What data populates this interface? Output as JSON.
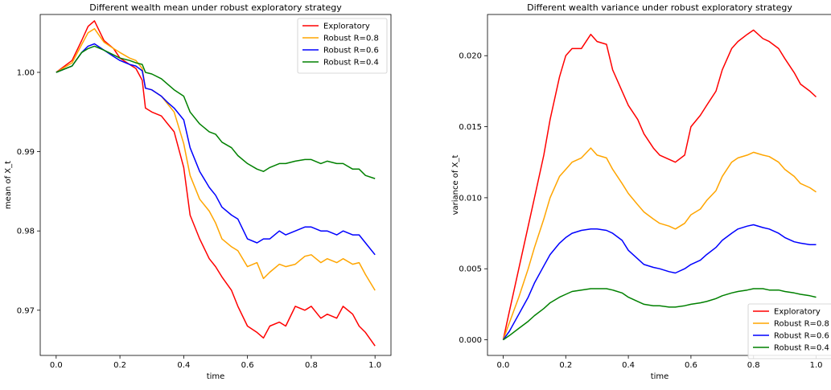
{
  "chart_data": [
    {
      "type": "line",
      "title": "Different wealth mean under robust exploratory strategy",
      "xlabel": "time",
      "ylabel": "mean of X_t",
      "xlim": [
        -0.05,
        1.05
      ],
      "ylim": [
        0.9643,
        1.0073
      ],
      "x_ticks": [
        0.0,
        0.2,
        0.4,
        0.6,
        0.8,
        1.0
      ],
      "y_ticks": [
        0.97,
        0.98,
        0.99,
        1.0
      ],
      "x_tick_labels": [
        "0.0",
        "0.2",
        "0.4",
        "0.6",
        "0.8",
        "1.0"
      ],
      "y_tick_labels": [
        "0.97",
        "0.98",
        "0.99",
        "1.00"
      ],
      "legend": "upper right",
      "grid": false,
      "series": [
        {
          "name": "Exploratory",
          "color": "#ff0000",
          "x": [
            0,
            0.05,
            0.08,
            0.1,
            0.12,
            0.15,
            0.18,
            0.2,
            0.23,
            0.25,
            0.27,
            0.28,
            0.3,
            0.33,
            0.35,
            0.37,
            0.4,
            0.42,
            0.45,
            0.48,
            0.5,
            0.52,
            0.55,
            0.57,
            0.6,
            0.63,
            0.65,
            0.67,
            0.7,
            0.72,
            0.75,
            0.78,
            0.8,
            0.83,
            0.85,
            0.88,
            0.9,
            0.93,
            0.95,
            0.97,
            1.0
          ],
          "y": [
            1.0,
            1.0015,
            1.004,
            1.0058,
            1.0065,
            1.004,
            1.003,
            1.0018,
            1.001,
            1.0005,
            0.999,
            0.9955,
            0.995,
            0.9945,
            0.9935,
            0.9925,
            0.988,
            0.982,
            0.979,
            0.9765,
            0.9755,
            0.9742,
            0.9725,
            0.9705,
            0.968,
            0.9672,
            0.9665,
            0.968,
            0.9685,
            0.968,
            0.9705,
            0.97,
            0.9705,
            0.969,
            0.9695,
            0.969,
            0.9705,
            0.9695,
            0.968,
            0.9672,
            0.9655
          ]
        },
        {
          "name": "Robust R=0.8",
          "color": "#ffa500",
          "x": [
            0,
            0.05,
            0.08,
            0.1,
            0.12,
            0.15,
            0.18,
            0.2,
            0.23,
            0.25,
            0.27,
            0.28,
            0.3,
            0.33,
            0.35,
            0.37,
            0.4,
            0.42,
            0.45,
            0.48,
            0.5,
            0.52,
            0.55,
            0.57,
            0.6,
            0.63,
            0.65,
            0.67,
            0.7,
            0.72,
            0.75,
            0.78,
            0.8,
            0.83,
            0.85,
            0.88,
            0.9,
            0.93,
            0.95,
            0.97,
            1.0
          ],
          "y": [
            1.0,
            1.0012,
            1.0035,
            1.005,
            1.0055,
            1.0038,
            1.003,
            1.0025,
            1.0018,
            1.0015,
            1.0005,
            0.998,
            0.9978,
            0.997,
            0.996,
            0.995,
            0.991,
            0.987,
            0.984,
            0.9825,
            0.981,
            0.979,
            0.978,
            0.9775,
            0.9755,
            0.976,
            0.974,
            0.9748,
            0.9758,
            0.9755,
            0.9758,
            0.9768,
            0.977,
            0.976,
            0.9765,
            0.976,
            0.9765,
            0.9758,
            0.976,
            0.9745,
            0.9725
          ]
        },
        {
          "name": "Robust R=0.6",
          "color": "#0000ff",
          "x": [
            0,
            0.05,
            0.08,
            0.1,
            0.12,
            0.15,
            0.18,
            0.2,
            0.23,
            0.25,
            0.27,
            0.28,
            0.3,
            0.33,
            0.35,
            0.37,
            0.4,
            0.42,
            0.45,
            0.48,
            0.5,
            0.52,
            0.55,
            0.57,
            0.6,
            0.63,
            0.65,
            0.67,
            0.7,
            0.72,
            0.75,
            0.78,
            0.8,
            0.83,
            0.85,
            0.88,
            0.9,
            0.93,
            0.95,
            0.97,
            1.0
          ],
          "y": [
            1.0,
            1.0008,
            1.0025,
            1.0033,
            1.0036,
            1.0028,
            1.002,
            1.0015,
            1.001,
            1.0008,
            1.0002,
            0.998,
            0.9978,
            0.997,
            0.9962,
            0.9955,
            0.994,
            0.9905,
            0.9875,
            0.9855,
            0.9845,
            0.983,
            0.982,
            0.9815,
            0.979,
            0.9785,
            0.979,
            0.979,
            0.98,
            0.9795,
            0.98,
            0.9805,
            0.9805,
            0.98,
            0.98,
            0.9795,
            0.98,
            0.9795,
            0.9795,
            0.9785,
            0.977
          ]
        },
        {
          "name": "Robust R=0.4",
          "color": "#008000",
          "x": [
            0,
            0.05,
            0.08,
            0.1,
            0.12,
            0.15,
            0.18,
            0.2,
            0.23,
            0.25,
            0.27,
            0.28,
            0.3,
            0.33,
            0.35,
            0.37,
            0.4,
            0.42,
            0.45,
            0.48,
            0.5,
            0.52,
            0.55,
            0.57,
            0.6,
            0.63,
            0.65,
            0.67,
            0.7,
            0.72,
            0.75,
            0.78,
            0.8,
            0.83,
            0.85,
            0.88,
            0.9,
            0.93,
            0.95,
            0.97,
            1.0
          ],
          "y": [
            1.0,
            1.0008,
            1.0025,
            1.003,
            1.0033,
            1.0028,
            1.0022,
            1.0018,
            1.0015,
            1.0012,
            1.001,
            1.0,
            0.9998,
            0.9992,
            0.9985,
            0.9978,
            0.997,
            0.995,
            0.9935,
            0.9925,
            0.9922,
            0.9912,
            0.9905,
            0.9895,
            0.9885,
            0.9878,
            0.9875,
            0.988,
            0.9885,
            0.9885,
            0.9888,
            0.989,
            0.989,
            0.9885,
            0.9888,
            0.9885,
            0.9885,
            0.9878,
            0.9878,
            0.987,
            0.9866
          ]
        }
      ]
    },
    {
      "type": "line",
      "title": "Different wealth variance under robust exploratory strategy",
      "xlabel": "time",
      "ylabel": "variance of X_t",
      "xlim": [
        -0.05,
        1.05
      ],
      "ylim": [
        -0.0011,
        0.0229
      ],
      "x_ticks": [
        0.0,
        0.2,
        0.4,
        0.6,
        0.8,
        1.0
      ],
      "y_ticks": [
        0.0,
        0.005,
        0.01,
        0.015,
        0.02
      ],
      "x_tick_labels": [
        "0.0",
        "0.2",
        "0.4",
        "0.6",
        "0.8",
        "1.0"
      ],
      "y_tick_labels": [
        "0.000",
        "0.005",
        "0.010",
        "0.015",
        "0.020"
      ],
      "legend": "lower right",
      "grid": false,
      "series": [
        {
          "name": "Exploratory",
          "color": "#ff0000",
          "x": [
            0,
            0.02,
            0.05,
            0.08,
            0.1,
            0.13,
            0.15,
            0.18,
            0.2,
            0.22,
            0.25,
            0.28,
            0.3,
            0.33,
            0.35,
            0.38,
            0.4,
            0.43,
            0.45,
            0.48,
            0.5,
            0.53,
            0.55,
            0.58,
            0.6,
            0.63,
            0.65,
            0.68,
            0.7,
            0.73,
            0.75,
            0.78,
            0.8,
            0.83,
            0.85,
            0.88,
            0.9,
            0.93,
            0.95,
            0.98,
            1.0
          ],
          "y": [
            0.0,
            0.002,
            0.005,
            0.008,
            0.01,
            0.013,
            0.0155,
            0.0185,
            0.02,
            0.0205,
            0.0205,
            0.0215,
            0.021,
            0.0208,
            0.019,
            0.0175,
            0.0165,
            0.0155,
            0.0145,
            0.0135,
            0.013,
            0.0127,
            0.0125,
            0.013,
            0.015,
            0.0158,
            0.0165,
            0.0175,
            0.019,
            0.0205,
            0.021,
            0.0215,
            0.0218,
            0.0212,
            0.021,
            0.0205,
            0.0198,
            0.0188,
            0.018,
            0.0175,
            0.0171
          ]
        },
        {
          "name": "Robust R=0.8",
          "color": "#ffa500",
          "x": [
            0,
            0.02,
            0.05,
            0.08,
            0.1,
            0.13,
            0.15,
            0.18,
            0.2,
            0.22,
            0.25,
            0.28,
            0.3,
            0.33,
            0.35,
            0.38,
            0.4,
            0.43,
            0.45,
            0.48,
            0.5,
            0.53,
            0.55,
            0.58,
            0.6,
            0.63,
            0.65,
            0.68,
            0.7,
            0.73,
            0.75,
            0.78,
            0.8,
            0.83,
            0.85,
            0.88,
            0.9,
            0.93,
            0.95,
            0.98,
            1.0
          ],
          "y": [
            0.0,
            0.0012,
            0.003,
            0.005,
            0.0065,
            0.0085,
            0.01,
            0.0115,
            0.012,
            0.0125,
            0.0128,
            0.0135,
            0.013,
            0.0128,
            0.012,
            0.011,
            0.0103,
            0.0095,
            0.009,
            0.0085,
            0.0082,
            0.008,
            0.0078,
            0.0082,
            0.0088,
            0.0092,
            0.0098,
            0.0105,
            0.0115,
            0.0125,
            0.0128,
            0.013,
            0.0132,
            0.013,
            0.0129,
            0.0125,
            0.012,
            0.0115,
            0.011,
            0.0107,
            0.0104
          ]
        },
        {
          "name": "Robust R=0.6",
          "color": "#0000ff",
          "x": [
            0,
            0.02,
            0.05,
            0.08,
            0.1,
            0.13,
            0.15,
            0.18,
            0.2,
            0.22,
            0.25,
            0.28,
            0.3,
            0.33,
            0.35,
            0.38,
            0.4,
            0.43,
            0.45,
            0.48,
            0.5,
            0.53,
            0.55,
            0.58,
            0.6,
            0.63,
            0.65,
            0.68,
            0.7,
            0.73,
            0.75,
            0.78,
            0.8,
            0.83,
            0.85,
            0.88,
            0.9,
            0.93,
            0.95,
            0.98,
            1.0
          ],
          "y": [
            0.0,
            0.0006,
            0.0018,
            0.003,
            0.004,
            0.0052,
            0.006,
            0.0068,
            0.0072,
            0.0075,
            0.0077,
            0.0078,
            0.0078,
            0.0077,
            0.0075,
            0.007,
            0.0063,
            0.0057,
            0.0053,
            0.0051,
            0.005,
            0.0048,
            0.0047,
            0.005,
            0.0053,
            0.0056,
            0.006,
            0.0065,
            0.007,
            0.0075,
            0.0078,
            0.008,
            0.0081,
            0.0079,
            0.0078,
            0.0075,
            0.0072,
            0.0069,
            0.0068,
            0.0067,
            0.0067
          ]
        },
        {
          "name": "Robust R=0.4",
          "color": "#008000",
          "x": [
            0,
            0.02,
            0.05,
            0.08,
            0.1,
            0.13,
            0.15,
            0.18,
            0.2,
            0.22,
            0.25,
            0.28,
            0.3,
            0.33,
            0.35,
            0.38,
            0.4,
            0.43,
            0.45,
            0.48,
            0.5,
            0.53,
            0.55,
            0.58,
            0.6,
            0.63,
            0.65,
            0.68,
            0.7,
            0.73,
            0.75,
            0.78,
            0.8,
            0.83,
            0.85,
            0.88,
            0.9,
            0.93,
            0.95,
            0.98,
            1.0
          ],
          "y": [
            0.0,
            0.0003,
            0.0008,
            0.0013,
            0.0017,
            0.0022,
            0.0026,
            0.003,
            0.0032,
            0.0034,
            0.0035,
            0.0036,
            0.0036,
            0.0036,
            0.0035,
            0.0033,
            0.003,
            0.0027,
            0.0025,
            0.0024,
            0.0024,
            0.0023,
            0.0023,
            0.0024,
            0.0025,
            0.0026,
            0.0027,
            0.0029,
            0.0031,
            0.0033,
            0.0034,
            0.0035,
            0.0036,
            0.0036,
            0.0035,
            0.0035,
            0.0034,
            0.0033,
            0.0032,
            0.0031,
            0.003
          ]
        }
      ]
    }
  ]
}
